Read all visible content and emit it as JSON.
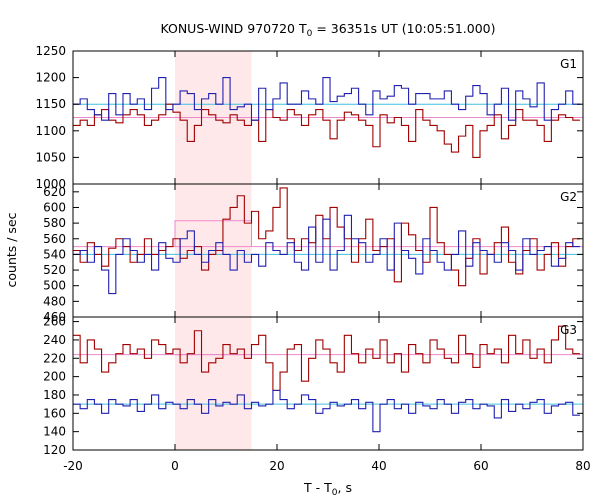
{
  "chart_data": {
    "type": "line",
    "title_main": "KONUS-WIND 970720 T",
    "title_sub": "0",
    "title_rest": " = 36351s UT (10:05:51.000)",
    "xlabel_main": "T - T",
    "xlabel_sub": "0",
    "xlabel_rest": ", s",
    "ylabel": "counts / sec",
    "xlim": [
      -20,
      80
    ],
    "xticks": [
      -20,
      0,
      20,
      40,
      60,
      80
    ],
    "highlight_interval": [
      0,
      15
    ],
    "colors": {
      "red_series": "#a00000",
      "blue_series": "#2020b0",
      "red_background": "#ee88cc",
      "blue_background": "#40c0e0",
      "highlight": "#ffe8ea"
    },
    "panels": [
      {
        "label": "G1",
        "ylim": [
          1000,
          1250
        ],
        "yticks": [
          1000,
          1050,
          1100,
          1150,
          1200,
          1250
        ],
        "backgrounds": {
          "red": 1125,
          "blue": 1150
        },
        "red_step_interval": [
          0,
          15
        ],
        "red_step_level": 1125,
        "series": [
          {
            "color": "red",
            "x_start": -20,
            "dt": 1.4,
            "values": [
              1110,
              1120,
              1110,
              1130,
              1140,
              1120,
              1115,
              1130,
              1140,
              1130,
              1110,
              1120,
              1130,
              1150,
              1135,
              1120,
              1080,
              1110,
              1140,
              1130,
              1120,
              1115,
              1130,
              1120,
              1110,
              1120,
              1080,
              1140,
              1125,
              1120,
              1140,
              1130,
              1110,
              1130,
              1140,
              1120,
              1085,
              1120,
              1135,
              1130,
              1120,
              1110,
              1070,
              1130,
              1115,
              1125,
              1110,
              1080,
              1140,
              1120,
              1110,
              1100,
              1075,
              1060,
              1090,
              1110,
              1050,
              1100,
              1110,
              1130,
              1085,
              1110,
              1140,
              1120,
              1120,
              1110,
              1080,
              1120,
              1130,
              1125,
              1120
            ]
          },
          {
            "color": "blue",
            "x_start": -20,
            "dt": 1.4,
            "values": [
              1150,
              1160,
              1140,
              1130,
              1120,
              1170,
              1130,
              1170,
              1150,
              1160,
              1140,
              1180,
              1200,
              1140,
              1150,
              1175,
              1170,
              1140,
              1160,
              1170,
              1150,
              1200,
              1140,
              1145,
              1150,
              1120,
              1180,
              1140,
              1160,
              1190,
              1150,
              1150,
              1175,
              1160,
              1150,
              1200,
              1155,
              1165,
              1170,
              1180,
              1150,
              1130,
              1175,
              1160,
              1165,
              1185,
              1180,
              1150,
              1170,
              1170,
              1160,
              1160,
              1175,
              1150,
              1140,
              1165,
              1185,
              1170,
              1130,
              1150,
              1180,
              1120,
              1175,
              1160,
              1145,
              1190,
              1120,
              1140,
              1150,
              1175,
              1150
            ]
          }
        ]
      },
      {
        "label": "G2",
        "ylim": [
          460,
          630
        ],
        "yticks": [
          460,
          480,
          500,
          520,
          540,
          560,
          580,
          600,
          620
        ],
        "backgrounds": {
          "red": 550,
          "blue": 540
        },
        "red_step_interval": [
          0,
          15
        ],
        "red_step_level": 583,
        "series": [
          {
            "color": "red",
            "x_start": -20,
            "dt": 1.4,
            "values": [
              545,
              530,
              555,
              540,
              525,
              548,
              560,
              550,
              530,
              540,
              560,
              540,
              545,
              550,
              560,
              535,
              545,
              550,
              520,
              540,
              545,
              585,
              600,
              615,
              580,
              595,
              560,
              570,
              600,
              625,
              560,
              545,
              560,
              555,
              590,
              560,
              600,
              575,
              560,
              530,
              560,
              585,
              545,
              550,
              560,
              505,
              580,
              565,
              545,
              530,
              600,
              555,
              540,
              520,
              500,
              535,
              560,
              515,
              540,
              555,
              575,
              530,
              515,
              545,
              560,
              520,
              540,
              555,
              525,
              550,
              560
            ]
          },
          {
            "color": "blue",
            "x_start": -20,
            "dt": 1.4,
            "values": [
              540,
              545,
              530,
              550,
              520,
              490,
              540,
              560,
              545,
              530,
              540,
              520,
              555,
              535,
              530,
              560,
              570,
              540,
              530,
              545,
              555,
              540,
              520,
              545,
              530,
              540,
              525,
              555,
              545,
              540,
              555,
              530,
              520,
              575,
              530,
              585,
              520,
              545,
              590,
              560,
              555,
              530,
              540,
              560,
              520,
              580,
              545,
              535,
              515,
              560,
              545,
              530,
              520,
              540,
              570,
              525,
              555,
              545,
              540,
              530,
              555,
              545,
              520,
              560,
              540,
              545,
              550,
              525,
              535,
              555,
              550
            ]
          }
        ]
      },
      {
        "label": "G3",
        "ylim": [
          120,
          265
        ],
        "yticks": [
          120,
          140,
          160,
          180,
          200,
          220,
          240,
          260
        ],
        "backgrounds": {
          "red": 224,
          "blue": 170
        },
        "red_step_interval": [
          0,
          15
        ],
        "red_step_level": 224,
        "series": [
          {
            "color": "red",
            "x_start": -20,
            "dt": 1.4,
            "values": [
              245,
              215,
              240,
              230,
              205,
              215,
              225,
              235,
              225,
              230,
              220,
              240,
              235,
              225,
              230,
              215,
              225,
              250,
              205,
              215,
              220,
              235,
              225,
              230,
              220,
              235,
              245,
              215,
              185,
              205,
              230,
              235,
              195,
              220,
              240,
              230,
              215,
              205,
              245,
              225,
              215,
              230,
              220,
              240,
              215,
              225,
              205,
              235,
              225,
              215,
              240,
              230,
              220,
              215,
              245,
              225,
              210,
              235,
              225,
              230,
              215,
              245,
              225,
              240,
              220,
              230,
              215,
              240,
              255,
              230,
              225
            ]
          },
          {
            "color": "blue",
            "x_start": -20,
            "dt": 1.4,
            "values": [
              170,
              165,
              175,
              170,
              160,
              175,
              170,
              168,
              175,
              162,
              170,
              180,
              165,
              172,
              170,
              165,
              175,
              170,
              160,
              175,
              168,
              172,
              170,
              180,
              165,
              172,
              168,
              170,
              185,
              175,
              165,
              170,
              180,
              175,
              160,
              165,
              172,
              168,
              170,
              175,
              165,
              172,
              140,
              170,
              175,
              165,
              170,
              160,
              172,
              168,
              165,
              175,
              170,
              160,
              172,
              175,
              165,
              170,
              168,
              155,
              175,
              162,
              170,
              165,
              172,
              175,
              160,
              168,
              170,
              172,
              158
            ]
          }
        ]
      }
    ]
  }
}
